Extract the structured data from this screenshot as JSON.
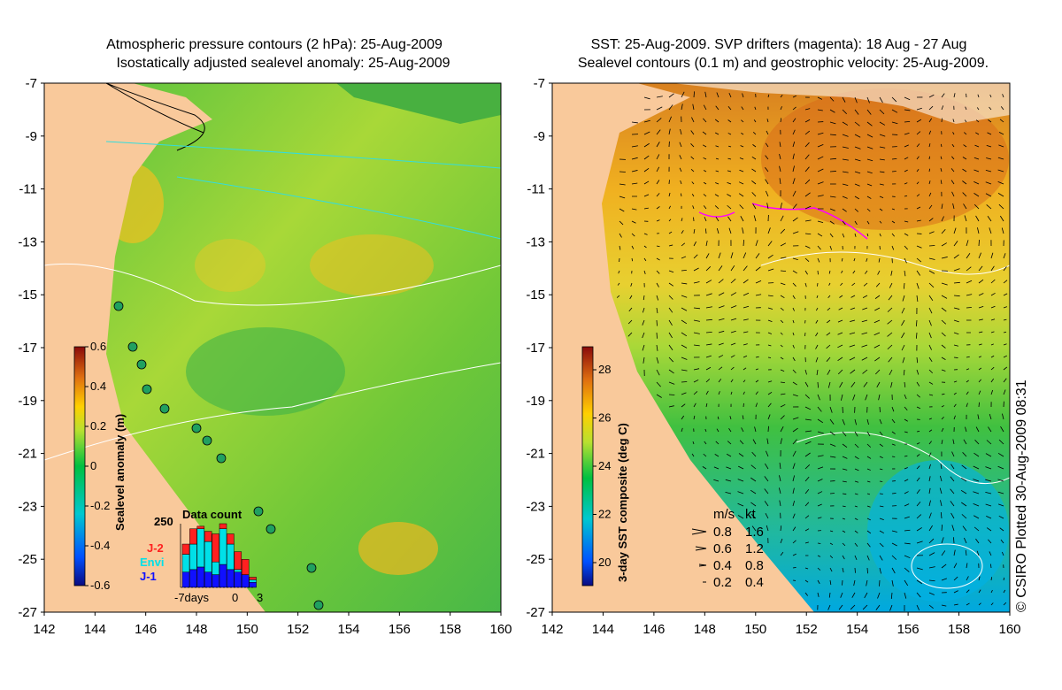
{
  "left_panel": {
    "title_line1": "Atmospheric pressure contours (2 hPa): 25-Aug-2009",
    "title_line2": "Isostatically adjusted sealevel anomaly: 25-Aug-2009",
    "colorbar": {
      "label": "Sealevel anomaly (m)",
      "ticks": [
        "0.6",
        "0.4",
        "0.2",
        "0",
        "-0.2",
        "-0.4",
        "-0.6"
      ]
    },
    "data_count": {
      "title": "Data count",
      "max_label": "250",
      "x_labels": [
        "-7days",
        "0",
        "3"
      ],
      "legend": [
        {
          "name": "J-2",
          "color": "#ff2020"
        },
        {
          "name": "Envi",
          "color": "#00e0e8"
        },
        {
          "name": "J-1",
          "color": "#1010ff"
        }
      ],
      "bars": [
        {
          "j1": 60,
          "envi": 70,
          "j2": 40
        },
        {
          "j1": 70,
          "envi": 100,
          "j2": 60
        },
        {
          "j1": 80,
          "envi": 150,
          "j2": 10
        },
        {
          "j1": 60,
          "envi": 120,
          "j2": 40
        },
        {
          "j1": 50,
          "envi": 50,
          "j2": 110
        },
        {
          "j1": 90,
          "envi": 140,
          "j2": 20
        },
        {
          "j1": 70,
          "envi": 100,
          "j2": 40
        },
        {
          "j1": 60,
          "envi": 10,
          "j2": 70
        },
        {
          "j1": 50,
          "envi": 0,
          "j2": 60
        },
        {
          "j1": 20,
          "envi": 10,
          "j2": 10
        }
      ]
    }
  },
  "right_panel": {
    "title_line1": "SST: 25-Aug-2009. SVP drifters (magenta): 18 Aug - 27 Aug",
    "title_line2": "Sealevel contours (0.1 m) and geostrophic velocity: 25-Aug-2009.",
    "colorbar": {
      "label": "3-day SST composite (deg C)",
      "ticks": [
        "28",
        "26",
        "24",
        "22",
        "20"
      ]
    },
    "velocity_legend": {
      "header_ms": "m/s",
      "header_kt": "kt",
      "rows": [
        {
          "ms": "0.8",
          "kt": "1.6"
        },
        {
          "ms": "0.6",
          "kt": "1.2"
        },
        {
          "ms": "0.4",
          "kt": "0.8"
        },
        {
          "ms": "0.2",
          "kt": "0.4"
        }
      ]
    }
  },
  "axes": {
    "lat_ticks": [
      "-7",
      "-9",
      "-11",
      "-13",
      "-15",
      "-17",
      "-19",
      "-21",
      "-23",
      "-25",
      "-27"
    ],
    "lon_ticks": [
      "142",
      "144",
      "146",
      "148",
      "150",
      "152",
      "154",
      "156",
      "158",
      "160"
    ],
    "lat_range": [
      -27,
      -7
    ],
    "lon_range": [
      142,
      160
    ]
  },
  "credit": "© CSIRO Plotted 30-Aug-2009 08:31",
  "colors": {
    "land": "#f9c99b",
    "contour_white": "#ffffff",
    "contour_cyan": "#33dddd",
    "drifter_magenta": "#ff00ff"
  }
}
